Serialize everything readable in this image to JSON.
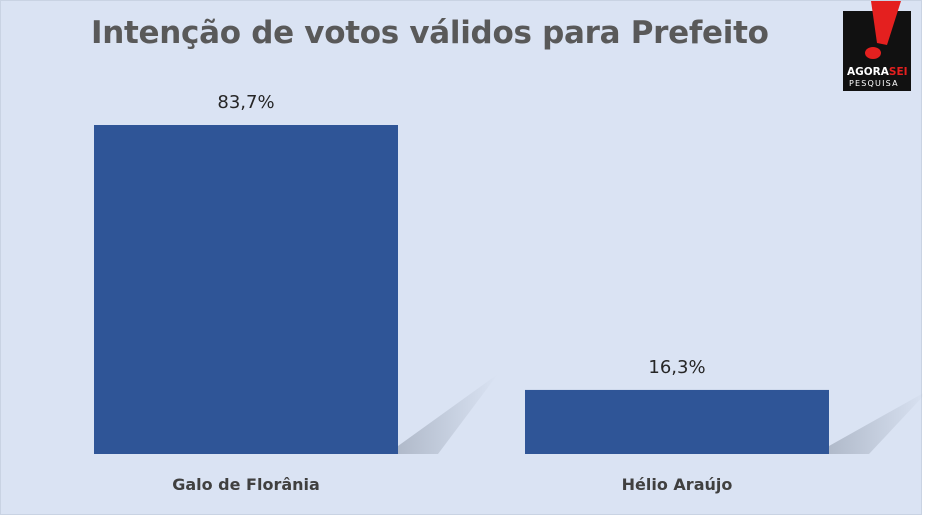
{
  "brand": {
    "name_part1": "AGORA",
    "name_part2": "SEI",
    "subtitle": "PESQUISA",
    "accent_color": "#e4201f",
    "logo_bg": "#111111"
  },
  "chart_data": {
    "type": "bar",
    "title": "Intenção de votos válidos para Prefeito",
    "categories": [
      "Galo de Florânia",
      "Hélio Araújo"
    ],
    "values": [
      83.7,
      16.3
    ],
    "value_labels": [
      "83,7%",
      "16,3%"
    ],
    "xlabel": "",
    "ylabel": "",
    "ylim": [
      0,
      100
    ],
    "grid": false,
    "legend": "none",
    "bar_color": "#2f5597",
    "background_color": "#dae3f3"
  }
}
